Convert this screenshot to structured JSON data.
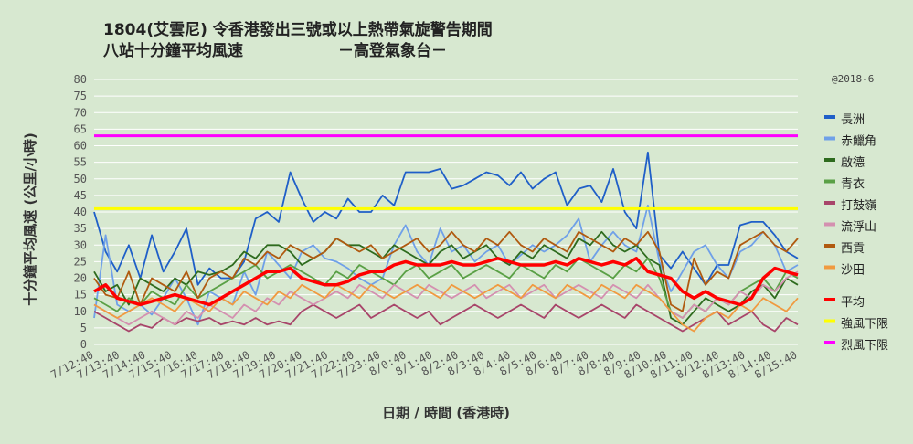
{
  "chart_data": {
    "type": "line",
    "title_line1": "1804(艾雲尼)  令香港發出三號或以上熱帶氣旋警告期間",
    "title_line2": "八站十分鐘平均風速",
    "title_source": "－高登氣象台－",
    "note": "@2018-6",
    "ylabel": "十分鐘平均風速 (公里/小時)",
    "xlabel": "日期 / 時間 (香港時)",
    "ylim": [
      0,
      80
    ],
    "yticks": [
      0,
      5,
      10,
      15,
      20,
      25,
      30,
      35,
      40,
      45,
      50,
      55,
      60,
      65,
      70,
      75,
      80
    ],
    "x_ticks": [
      "7/12:40",
      "7/13:40",
      "7/14:40",
      "7/15:40",
      "7/16:40",
      "7/17:40",
      "7/18:40",
      "7/19:40",
      "7/20:40",
      "7/21:40",
      "7/22:40",
      "7/23:40",
      "8/0:40",
      "8/1:40",
      "8/2:40",
      "8/3:40",
      "8/4:40",
      "8/5:40",
      "8/6:40",
      "8/7:40",
      "8/8:40",
      "8/9:40",
      "8/10:40",
      "8/11:40",
      "8/12:40",
      "8/13:40",
      "8/14:40",
      "8/15:40"
    ],
    "thresholds": [
      {
        "name": "強風下限",
        "value": 41,
        "color": "#ffff00"
      },
      {
        "name": "烈風下限",
        "value": 63,
        "color": "#ff00ff"
      }
    ],
    "series": [
      {
        "name": "長洲",
        "color": "#1f5fc8",
        "values": [
          40,
          28,
          22,
          30,
          20,
          33,
          22,
          28,
          35,
          18,
          23,
          20,
          20,
          25,
          38,
          40,
          37,
          52,
          44,
          37,
          40,
          38,
          44,
          40,
          40,
          45,
          42,
          52,
          52,
          52,
          53,
          47,
          48,
          50,
          52,
          51,
          48,
          52,
          47,
          50,
          52,
          42,
          47,
          48,
          43,
          53,
          40,
          35,
          58,
          27,
          23,
          28,
          23,
          18,
          24,
          24,
          36,
          37,
          37,
          33,
          28,
          26
        ]
      },
      {
        "name": "赤鱲角",
        "color": "#6fa0e8",
        "values": [
          8,
          33,
          12,
          10,
          12,
          9,
          14,
          20,
          14,
          6,
          16,
          14,
          12,
          22,
          15,
          28,
          24,
          20,
          28,
          30,
          26,
          25,
          23,
          20,
          18,
          20,
          30,
          36,
          28,
          24,
          35,
          28,
          30,
          25,
          28,
          30,
          24,
          27,
          30,
          28,
          30,
          33,
          38,
          25,
          30,
          34,
          30,
          28,
          42,
          25,
          16,
          22,
          28,
          30,
          24,
          20,
          28,
          30,
          34,
          30,
          22,
          24
        ]
      },
      {
        "name": "啟德",
        "color": "#2e6b1e",
        "values": [
          22,
          16,
          18,
          12,
          20,
          18,
          16,
          20,
          18,
          22,
          21,
          22,
          24,
          28,
          26,
          30,
          30,
          28,
          24,
          26,
          28,
          32,
          30,
          30,
          28,
          26,
          30,
          28,
          26,
          24,
          28,
          30,
          26,
          28,
          30,
          26,
          24,
          28,
          26,
          30,
          28,
          26,
          32,
          30,
          34,
          30,
          28,
          30,
          26,
          24,
          8,
          6,
          10,
          14,
          12,
          10,
          12,
          16,
          18,
          14,
          20,
          18
        ]
      },
      {
        "name": "青衣",
        "color": "#5aa046",
        "values": [
          14,
          12,
          10,
          14,
          12,
          16,
          14,
          12,
          18,
          14,
          16,
          18,
          20,
          22,
          24,
          20,
          22,
          24,
          22,
          20,
          18,
          22,
          20,
          24,
          22,
          20,
          18,
          22,
          24,
          20,
          22,
          24,
          20,
          22,
          24,
          22,
          20,
          24,
          22,
          20,
          24,
          22,
          26,
          24,
          22,
          20,
          24,
          22,
          26,
          20,
          10,
          8,
          12,
          10,
          14,
          12,
          16,
          18,
          20,
          16,
          22,
          20
        ]
      },
      {
        "name": "打鼓嶺",
        "color": "#a8456a",
        "values": [
          10,
          8,
          6,
          4,
          6,
          5,
          8,
          6,
          8,
          7,
          8,
          6,
          7,
          6,
          8,
          6,
          7,
          6,
          10,
          12,
          10,
          8,
          10,
          12,
          8,
          10,
          12,
          10,
          8,
          10,
          6,
          8,
          10,
          12,
          10,
          8,
          10,
          12,
          10,
          8,
          12,
          10,
          8,
          10,
          12,
          10,
          8,
          12,
          10,
          8,
          6,
          4,
          6,
          8,
          10,
          6,
          8,
          10,
          6,
          4,
          8,
          6
        ]
      },
      {
        "name": "流浮山",
        "color": "#d490b0",
        "values": [
          12,
          10,
          8,
          6,
          8,
          10,
          8,
          6,
          10,
          8,
          12,
          10,
          8,
          12,
          10,
          14,
          12,
          16,
          14,
          12,
          14,
          16,
          14,
          18,
          16,
          14,
          18,
          16,
          14,
          18,
          16,
          14,
          16,
          18,
          14,
          16,
          18,
          14,
          16,
          18,
          14,
          16,
          18,
          16,
          14,
          18,
          16,
          14,
          18,
          14,
          10,
          8,
          12,
          10,
          14,
          12,
          16,
          14,
          18,
          16,
          20,
          22
        ]
      },
      {
        "name": "西貢",
        "color": "#b05a10",
        "values": [
          20,
          15,
          14,
          22,
          12,
          20,
          18,
          16,
          22,
          14,
          20,
          22,
          20,
          26,
          24,
          28,
          26,
          30,
          28,
          26,
          28,
          32,
          30,
          28,
          30,
          26,
          28,
          30,
          32,
          28,
          30,
          34,
          30,
          28,
          32,
          30,
          34,
          30,
          28,
          32,
          30,
          28,
          34,
          32,
          30,
          28,
          32,
          30,
          34,
          28,
          12,
          10,
          26,
          18,
          22,
          20,
          30,
          32,
          34,
          30,
          28,
          32
        ]
      },
      {
        "name": "沙田",
        "color": "#f09a40",
        "values": [
          12,
          10,
          8,
          10,
          12,
          14,
          12,
          10,
          14,
          12,
          10,
          14,
          12,
          16,
          14,
          12,
          16,
          14,
          18,
          16,
          14,
          18,
          16,
          14,
          18,
          16,
          14,
          16,
          18,
          16,
          14,
          18,
          16,
          14,
          16,
          18,
          16,
          14,
          18,
          16,
          14,
          18,
          16,
          14,
          18,
          16,
          14,
          18,
          16,
          14,
          10,
          6,
          4,
          8,
          10,
          8,
          12,
          10,
          14,
          12,
          10,
          14
        ]
      },
      {
        "name": "平均",
        "color": "#ff0000",
        "values": [
          16,
          18,
          14,
          13,
          12,
          13,
          14,
          15,
          14,
          13,
          12,
          14,
          16,
          18,
          20,
          22,
          22,
          23,
          20,
          19,
          18,
          18,
          19,
          21,
          22,
          22,
          24,
          25,
          24,
          24,
          24,
          25,
          24,
          24,
          25,
          26,
          25,
          24,
          24,
          24,
          25,
          24,
          26,
          25,
          24,
          25,
          24,
          26,
          22,
          21,
          20,
          16,
          14,
          16,
          14,
          13,
          12,
          14,
          20,
          23,
          22,
          21
        ]
      }
    ]
  }
}
